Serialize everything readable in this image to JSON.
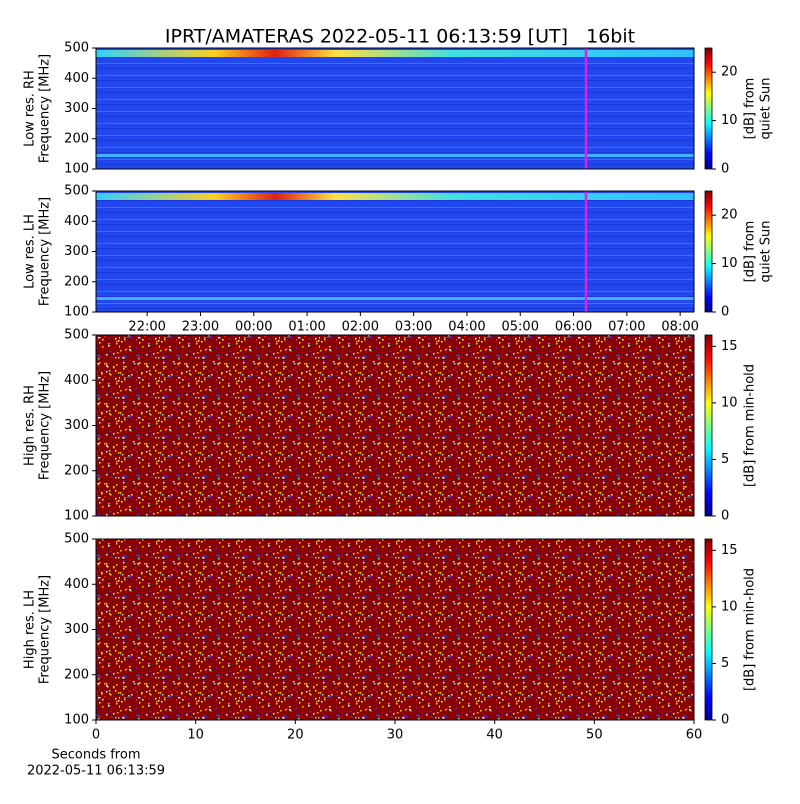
{
  "chart_data": [
    {
      "type": "heatmap",
      "title": "IPRT/AMATERAS 2022-05-11 06:13:59 [UT]   16bit",
      "style": "low",
      "ylabel": [
        "Low res. RH",
        "Frequency [MHz]"
      ],
      "ylim": [
        100,
        500
      ],
      "yticks": [
        100,
        200,
        300,
        400,
        500
      ],
      "xlim": [
        21.04,
        32.26
      ],
      "marker_x": 30.233,
      "marker_color": "#e020e0",
      "colorbar": {
        "label": [
          "[dB] from",
          "quiet Sun"
        ],
        "lim": [
          0,
          25
        ],
        "ticks": [
          0,
          10,
          20
        ]
      }
    },
    {
      "type": "heatmap",
      "style": "low",
      "ylabel": [
        "Low res. LH",
        "Frequency [MHz]"
      ],
      "ylim": [
        100,
        500
      ],
      "yticks": [
        100,
        200,
        300,
        400,
        500
      ],
      "xlim": [
        21.04,
        32.26
      ],
      "marker_x": 30.233,
      "marker_color": "#e020e0",
      "xticks": [
        {
          "value": 22,
          "label": "22:00"
        },
        {
          "value": 23,
          "label": "23:00"
        },
        {
          "value": 24,
          "label": "00:00"
        },
        {
          "value": 25,
          "label": "01:00"
        },
        {
          "value": 26,
          "label": "02:00"
        },
        {
          "value": 27,
          "label": "03:00"
        },
        {
          "value": 28,
          "label": "04:00"
        },
        {
          "value": 29,
          "label": "05:00"
        },
        {
          "value": 30,
          "label": "06:00"
        },
        {
          "value": 31,
          "label": "07:00"
        },
        {
          "value": 32,
          "label": "08:00"
        }
      ],
      "colorbar": {
        "label": [
          "[dB] from",
          "quiet Sun"
        ],
        "lim": [
          0,
          25
        ],
        "ticks": [
          0,
          10,
          20
        ]
      }
    },
    {
      "type": "heatmap",
      "style": "high",
      "ylabel": [
        "High res. RH",
        "Frequency [MHz]"
      ],
      "ylim": [
        100,
        500
      ],
      "yticks": [
        100,
        200,
        300,
        400,
        500
      ],
      "xlim": [
        0,
        60
      ],
      "colorbar": {
        "label": [
          "[dB] from min-hold"
        ],
        "lim": [
          0,
          16
        ],
        "ticks": [
          0,
          5,
          10,
          15
        ]
      }
    },
    {
      "type": "heatmap",
      "style": "high",
      "ylabel": [
        "High res. LH",
        "Frequency [MHz]"
      ],
      "ylim": [
        100,
        500
      ],
      "yticks": [
        100,
        200,
        300,
        400,
        500
      ],
      "xlim": [
        0,
        60
      ],
      "xticks": [
        0,
        10,
        20,
        30,
        40,
        50,
        60
      ],
      "xlabel": [
        "Seconds from",
        "2022-05-11 06:13:59"
      ],
      "colorbar": {
        "label": [
          "[dB] from min-hold"
        ],
        "lim": [
          0,
          16
        ],
        "ticks": [
          0,
          5,
          10,
          15
        ]
      }
    }
  ]
}
